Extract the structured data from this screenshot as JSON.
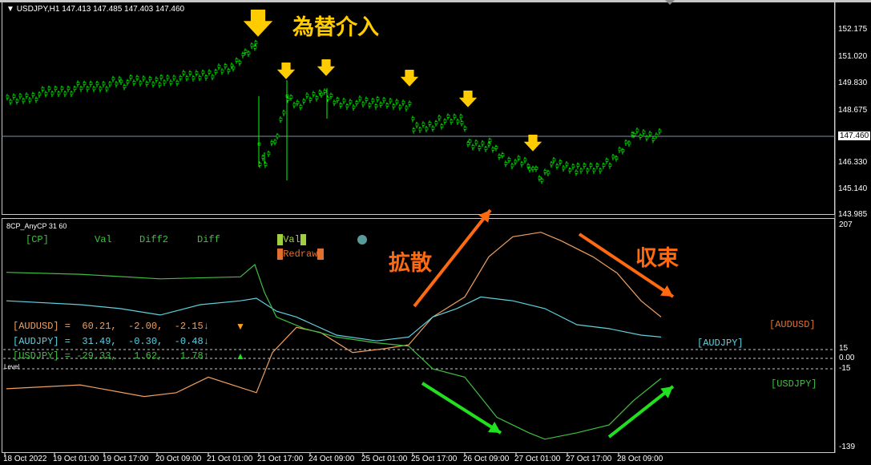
{
  "main_chart": {
    "header": "USDJPY,H1  147.413 147.485 147.403 147.460",
    "current_price": "147.460",
    "price_axis": [
      "152.175",
      "151.020",
      "149.830",
      "148.675",
      "147.460",
      "146.330",
      "145.140",
      "143.985"
    ],
    "annotation": "為替介入",
    "annotation_color": "#ffcc00",
    "candle_color": "#00ff00"
  },
  "indicator": {
    "title": "8CP_AnyCP 31 60",
    "header": {
      "cp": "[CP]",
      "val": "Val",
      "diff2": "Diff2",
      "diff": "Diff",
      "legend_val": "Val",
      "legend_redraw": "Redraw"
    },
    "rows": [
      {
        "text": "[AUDUSD] =  60.21,  -2.00,  -2.15↓",
        "color": "#f0a060"
      },
      {
        "text": "[AUDJPY] =  31.49,  -0.30,  -0.48↓",
        "color": "#60d0e0"
      },
      {
        "text": "[USDJPY] = -29.33,   1.62,   1.78↑",
        "color": "#40c040"
      }
    ],
    "level_label": "Level",
    "axis": [
      "207",
      "15",
      "0.00",
      "-15",
      "-139"
    ],
    "pair_labels": {
      "audusd": "[AUDUSD]",
      "audjpy": "[AUDJPY]",
      "usdjpy": "[USDJPY]"
    },
    "annotation_expand": "拡散",
    "annotation_converge": "収束"
  },
  "time_axis": [
    "18 Oct 2022",
    "19 Oct 01:00",
    "19 Oct 17:00",
    "20 Oct 09:00",
    "21 Oct 01:00",
    "21 Oct 17:00",
    "24 Oct 09:00",
    "25 Oct 01:00",
    "25 Oct 17:00",
    "26 Oct 09:00",
    "27 Oct 01:00",
    "27 Oct 17:00",
    "28 Oct 09:00"
  ],
  "chart_data": [
    {
      "type": "line",
      "title": "USDJPY,H1",
      "ylim": [
        143.985,
        152.175
      ],
      "series": [
        {
          "name": "USDJPY",
          "values": [
            148.99,
            149.4,
            149.6,
            149.83,
            149.94,
            150.1,
            150.47,
            151.0,
            151.5,
            146.2,
            146.4,
            147.46,
            149.2,
            148.9,
            149.3,
            148.95,
            148.9,
            148.9,
            147.8,
            148.1,
            148.2,
            147.1,
            147.1,
            146.4,
            146.2,
            145.5,
            146.2,
            146.0,
            146.2,
            147.1,
            147.6,
            147.46
          ]
        }
      ]
    },
    {
      "type": "line",
      "title": "8CP_AnyCP 31 60",
      "ylim": [
        -139,
        207
      ],
      "series": [
        {
          "name": "[AUDUSD]",
          "color": "#f0a060",
          "values": [
            -47,
            -41,
            -59,
            -53,
            -29,
            -53,
            9,
            48,
            40,
            9,
            15,
            21,
            64,
            95,
            157,
            188,
            195,
            182,
            157,
            132,
            89,
            64
          ]
        },
        {
          "name": "[AUDJPY]",
          "color": "#60d0e0",
          "values": [
            89,
            83,
            77,
            67,
            83,
            89,
            93,
            73,
            64,
            36,
            27,
            33,
            64,
            77,
            95,
            89,
            77,
            52,
            46,
            36,
            33
          ]
        },
        {
          "name": "[USDJPY]",
          "color": "#40c040",
          "values": [
            133,
            130,
            123,
            126,
            145,
            102,
            64,
            46,
            33,
            24,
            19,
            -16,
            -29,
            -91,
            -115,
            -125,
            -115,
            -103,
            -66,
            -31
          ]
        }
      ]
    }
  ]
}
